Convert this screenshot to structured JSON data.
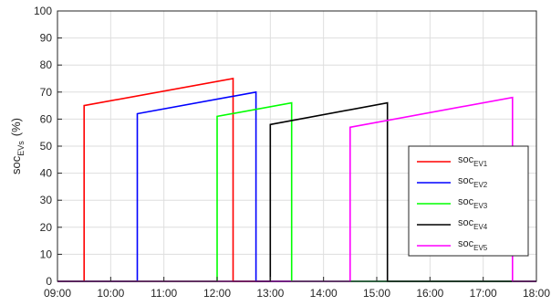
{
  "chart_data": {
    "type": "line",
    "title": "",
    "xlabel": "",
    "ylabel": "soc",
    "ylabel_sub": "EVs",
    "ylabel_unit": "(%)",
    "xlim": [
      9,
      18
    ],
    "ylim": [
      0,
      100
    ],
    "x_ticks": [
      9,
      10,
      11,
      12,
      13,
      14,
      15,
      16,
      17,
      18
    ],
    "x_tick_labels": [
      "09:00",
      "10:00",
      "11:00",
      "12:00",
      "13:00",
      "14:00",
      "15:00",
      "16:00",
      "17:00",
      "18:00"
    ],
    "y_ticks": [
      0,
      10,
      20,
      30,
      40,
      50,
      60,
      70,
      80,
      90,
      100
    ],
    "y_tick_labels": [
      "0",
      "10",
      "20",
      "30",
      "40",
      "50",
      "60",
      "70",
      "80",
      "90",
      "100"
    ],
    "grid": true,
    "legend_position": "bottom-right",
    "series": [
      {
        "name": "soc",
        "name_sub": "EV1",
        "color": "#ff0000",
        "x": [
          9,
          9.5,
          9.5,
          12.3,
          12.3,
          18
        ],
        "y": [
          0,
          0,
          65,
          75,
          0,
          0
        ]
      },
      {
        "name": "soc",
        "name_sub": "EV2",
        "color": "#0000ff",
        "x": [
          9,
          10.5,
          10.5,
          12.73,
          12.73,
          18
        ],
        "y": [
          0,
          0,
          62,
          70,
          0,
          0
        ]
      },
      {
        "name": "soc",
        "name_sub": "EV3",
        "color": "#00ff00",
        "x": [
          9,
          12,
          12,
          13.4,
          13.4,
          18
        ],
        "y": [
          0,
          0,
          61,
          66,
          0,
          0
        ]
      },
      {
        "name": "soc",
        "name_sub": "EV4",
        "color": "#000000",
        "x": [
          9,
          13,
          13,
          15.2,
          15.2,
          18
        ],
        "y": [
          0,
          0,
          58,
          66,
          0,
          0
        ]
      },
      {
        "name": "soc",
        "name_sub": "EV5",
        "color": "#ff00ff",
        "x": [
          9,
          14.5,
          14.5,
          17.55,
          17.55,
          18
        ],
        "y": [
          0,
          0,
          57,
          68,
          0,
          0
        ]
      }
    ]
  }
}
